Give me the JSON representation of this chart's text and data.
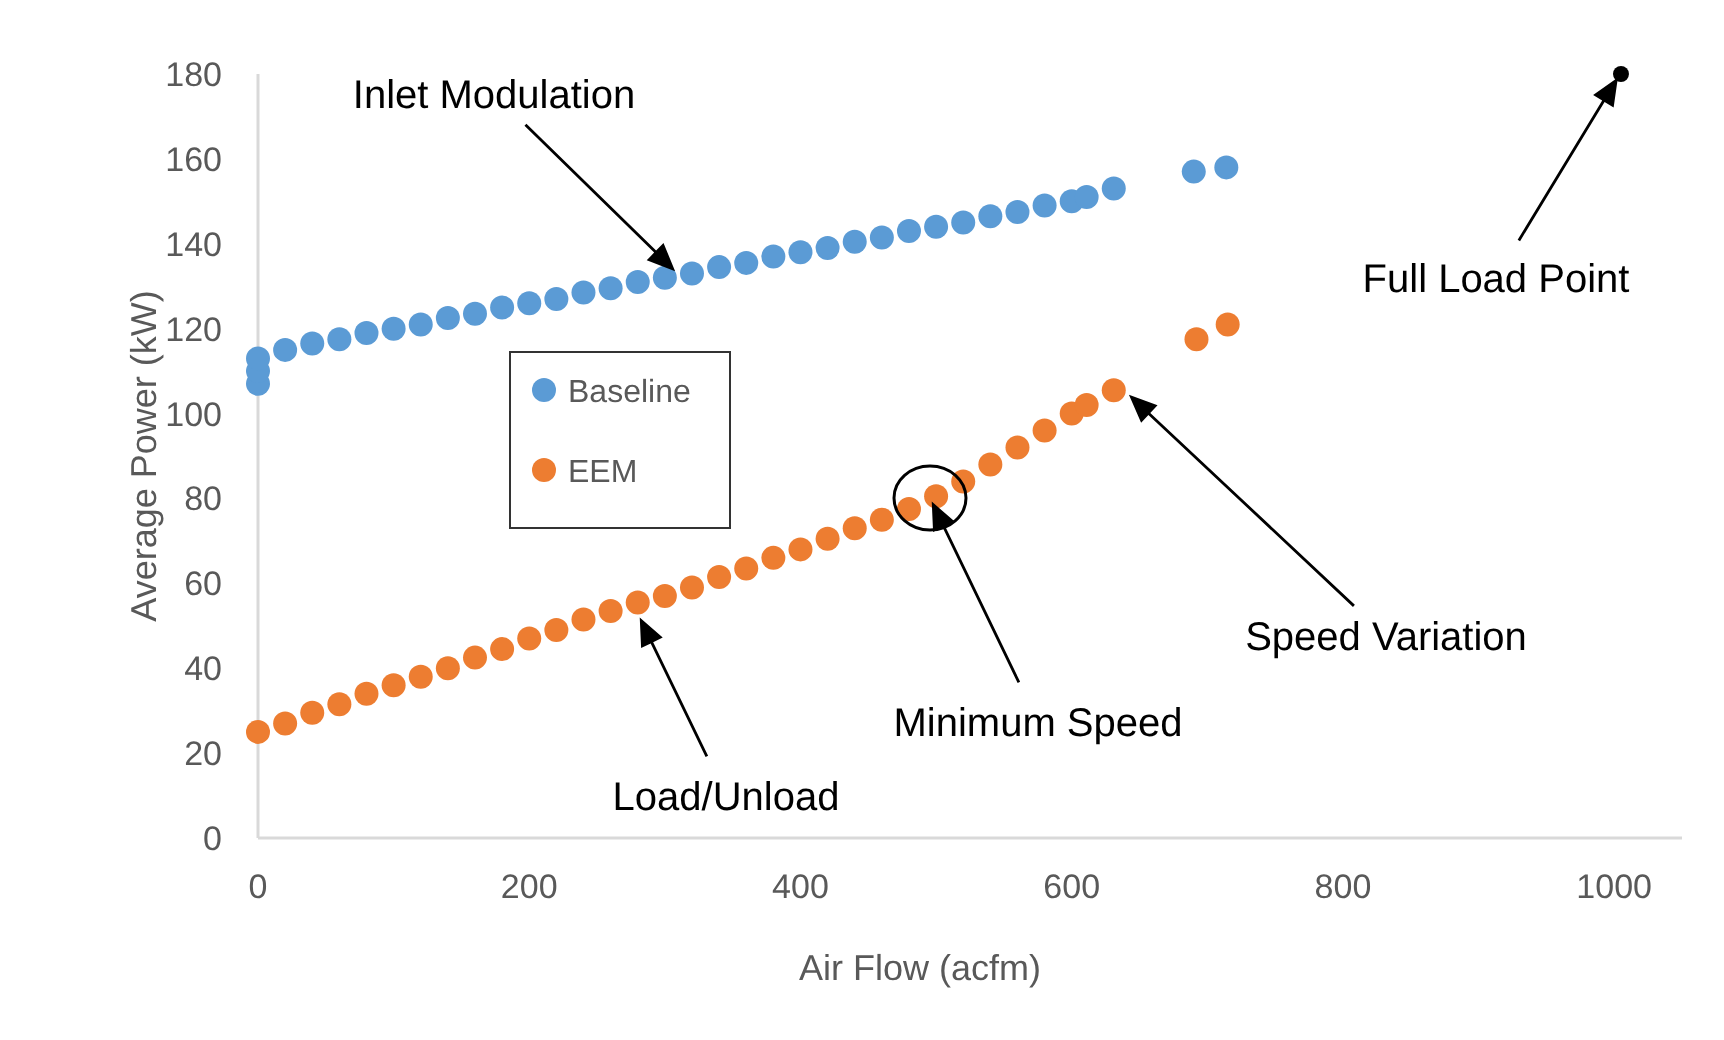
{
  "chart_data": {
    "type": "scatter",
    "xlabel": "Air Flow (acfm)",
    "ylabel": "Average Power (kW)",
    "xlim": [
      0,
      1050
    ],
    "xticks": [
      0,
      200,
      400,
      600,
      800,
      1000
    ],
    "ylim": [
      0,
      180
    ],
    "yticks": [
      0,
      20,
      40,
      60,
      80,
      100,
      120,
      140,
      160,
      180
    ],
    "marker": "circle",
    "legend": "left",
    "series": [
      {
        "name": "Baseline",
        "color": "#5b9bd5",
        "x": [
          0,
          0,
          0,
          20,
          40,
          60,
          80,
          100,
          120,
          140,
          160,
          180,
          200,
          220,
          240,
          260,
          280,
          300,
          320,
          340,
          360,
          380,
          400,
          420,
          440,
          460,
          480,
          500,
          520,
          540,
          560,
          580,
          600,
          611,
          631,
          690,
          714
        ],
        "values": [
          107,
          110,
          113,
          115,
          116.5,
          117.5,
          119,
          120,
          121,
          122.5,
          123.5,
          125,
          126,
          127,
          128.5,
          129.5,
          131,
          132,
          133,
          134.5,
          135.5,
          137,
          138,
          139,
          140.5,
          141.5,
          143,
          144,
          145,
          146.5,
          147.5,
          149,
          150,
          151,
          153,
          157,
          158
        ]
      },
      {
        "name": "EEM",
        "color": "#ed7d31",
        "x": [
          0,
          20,
          40,
          60,
          80,
          100,
          120,
          140,
          160,
          180,
          200,
          220,
          240,
          260,
          280,
          300,
          320,
          340,
          360,
          380,
          400,
          420,
          440,
          460,
          480,
          500,
          520,
          540,
          560,
          580,
          600,
          611,
          631,
          692,
          715
        ],
        "values": [
          25,
          27,
          29.5,
          31.5,
          34,
          36,
          38,
          40,
          42.5,
          44.5,
          47,
          49,
          51.5,
          53.5,
          55.5,
          57,
          59,
          61.5,
          63.5,
          66,
          68,
          70.5,
          73,
          75,
          77.5,
          80.5,
          84,
          88,
          92,
          96,
          100,
          102,
          105.5,
          117.5,
          121
        ]
      },
      {
        "color": "#000000",
        "x": [
          1005
        ],
        "values": [
          180
        ]
      }
    ],
    "annotations": [
      "Inlet Modulation",
      "Load/Unload",
      "Minimum Speed",
      "Speed Variation",
      "Full Load Point"
    ]
  }
}
